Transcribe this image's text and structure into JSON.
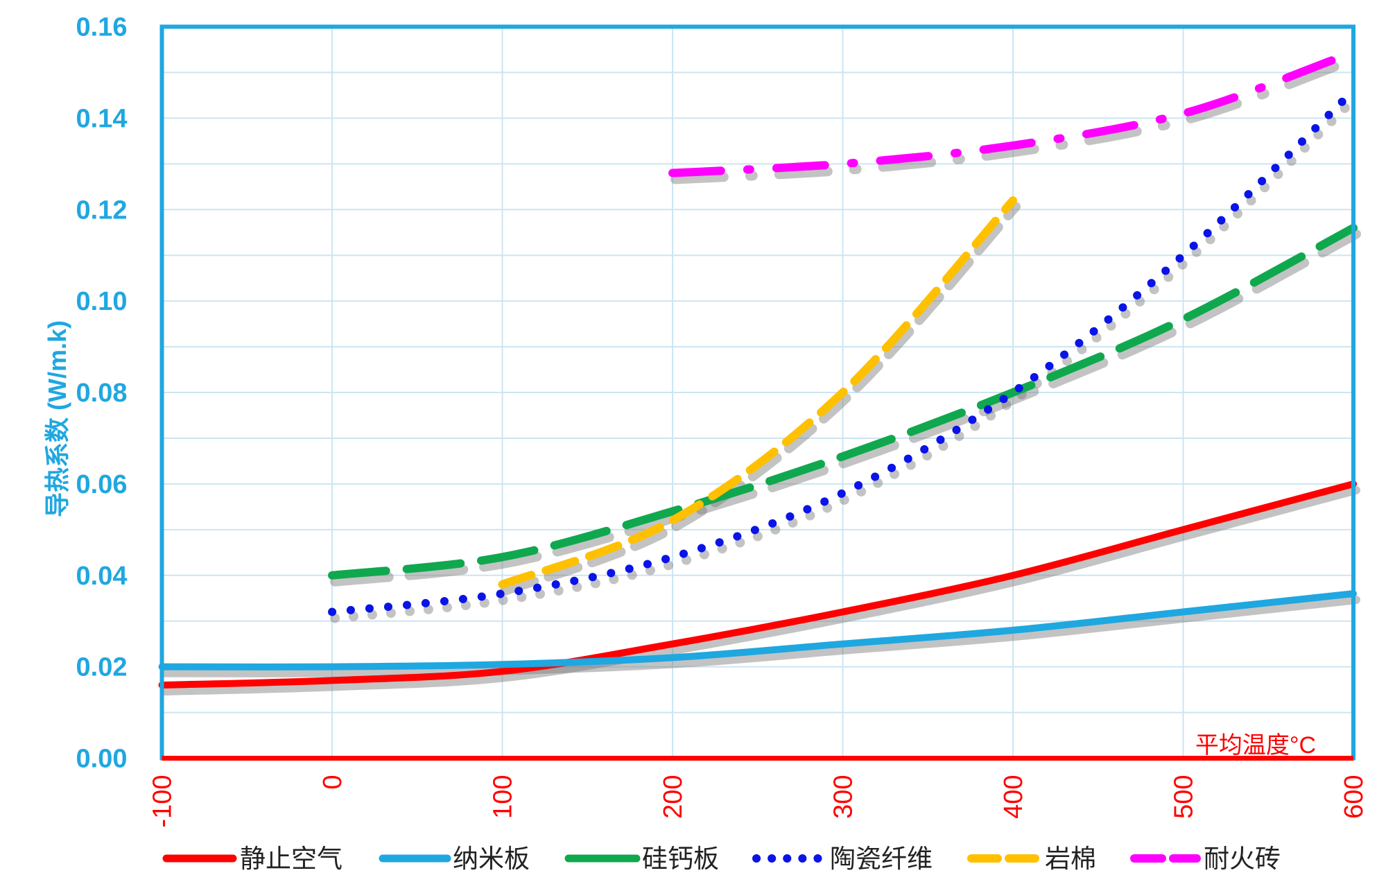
{
  "chart_data": {
    "type": "line",
    "title": "",
    "xlabel": "平均温度°C",
    "ylabel": "导热系数  (W/m.k)",
    "xlim": [
      -100,
      600
    ],
    "ylim": [
      0,
      0.16
    ],
    "x_ticks": [
      -100,
      0,
      100,
      200,
      300,
      400,
      500,
      600
    ],
    "x_tick_labels": [
      "-100",
      "0",
      "100",
      "200",
      "300",
      "400",
      "500",
      "600"
    ],
    "y_ticks": [
      0,
      0.02,
      0.04,
      0.06,
      0.08,
      0.1,
      0.12,
      0.14,
      0.16
    ],
    "y_tick_labels": [
      "0.00",
      "0.02",
      "0.04",
      "0.06",
      "0.08",
      "0.10",
      "0.12",
      "0.14",
      "0.16"
    ],
    "grid": true,
    "legend": "bottom",
    "colors": {
      "axis_accent": "#1fa7e0",
      "x_axis_text": "#ff0000",
      "grid": "#cbe5f2"
    },
    "series": [
      {
        "name": "静止空气",
        "color": "#ff0000",
        "style": "solid",
        "x": [
          -100,
          0,
          100,
          200,
          300,
          400,
          500,
          600
        ],
        "y": [
          0.016,
          0.017,
          0.019,
          0.025,
          0.032,
          0.04,
          0.05,
          0.06
        ]
      },
      {
        "name": "纳米板",
        "color": "#1fa7e0",
        "style": "solid",
        "x": [
          -100,
          0,
          100,
          200,
          300,
          400,
          500,
          600
        ],
        "y": [
          0.02,
          0.02,
          0.0205,
          0.022,
          0.025,
          0.028,
          0.032,
          0.036
        ]
      },
      {
        "name": "硅钙板",
        "color": "#10a84e",
        "style": "long-dash",
        "x": [
          0,
          100,
          200,
          300,
          400,
          500,
          600
        ],
        "y": [
          0.04,
          0.044,
          0.054,
          0.066,
          0.08,
          0.096,
          0.116
        ]
      },
      {
        "name": "陶瓷纤维",
        "color": "#0a14e6",
        "style": "dotted",
        "x": [
          0,
          100,
          200,
          300,
          400,
          500,
          600
        ],
        "y": [
          0.032,
          0.036,
          0.044,
          0.058,
          0.08,
          0.11,
          0.146
        ]
      },
      {
        "name": "岩棉",
        "color": "#ffc000",
        "style": "dashed",
        "x": [
          100,
          200,
          300,
          400
        ],
        "y": [
          0.038,
          0.052,
          0.08,
          0.122
        ]
      },
      {
        "name": "耐火砖",
        "color": "#ff00ff",
        "style": "dash-dot",
        "x": [
          200,
          300,
          400,
          500,
          590
        ],
        "y": [
          0.128,
          0.13,
          0.134,
          0.141,
          0.153
        ]
      }
    ]
  }
}
